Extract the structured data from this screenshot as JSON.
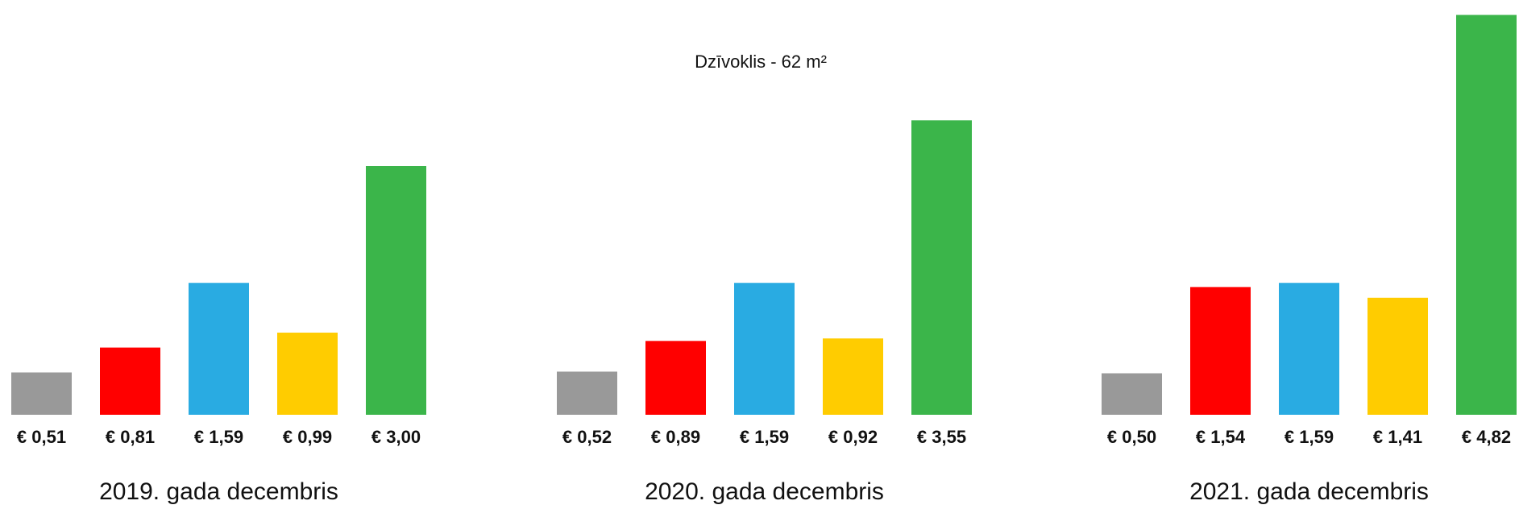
{
  "title": "Dzīvoklis - 62 m²",
  "chart_data": [
    {
      "type": "bar",
      "caption": "2019. gada decembris",
      "values": [
        0.51,
        0.81,
        1.59,
        0.99,
        3.0
      ],
      "value_labels": [
        "€ 0,51",
        "€ 0,81",
        "€ 1,59",
        "€ 0,99",
        "€ 3,00"
      ],
      "colors": [
        "#999999",
        "#ff0000",
        "#29abe2",
        "#ffcc00",
        "#3bb54a"
      ],
      "ylim": [
        0,
        5
      ]
    },
    {
      "type": "bar",
      "caption": "2020. gada decembris",
      "values": [
        0.52,
        0.89,
        1.59,
        0.92,
        3.55
      ],
      "value_labels": [
        "€ 0,52",
        "€ 0,89",
        "€ 1,59",
        "€ 0,92",
        "€ 3,55"
      ],
      "colors": [
        "#999999",
        "#ff0000",
        "#29abe2",
        "#ffcc00",
        "#3bb54a"
      ],
      "ylim": [
        0,
        5
      ]
    },
    {
      "type": "bar",
      "caption": "2021. gada decembris",
      "values": [
        0.5,
        1.54,
        1.59,
        1.41,
        4.82
      ],
      "value_labels": [
        "€ 0,50",
        "€ 1,54",
        "€ 1,59",
        "€ 1,41",
        "€ 4,82"
      ],
      "colors": [
        "#999999",
        "#ff0000",
        "#29abe2",
        "#ffcc00",
        "#3bb54a"
      ],
      "ylim": [
        0,
        5
      ]
    }
  ]
}
